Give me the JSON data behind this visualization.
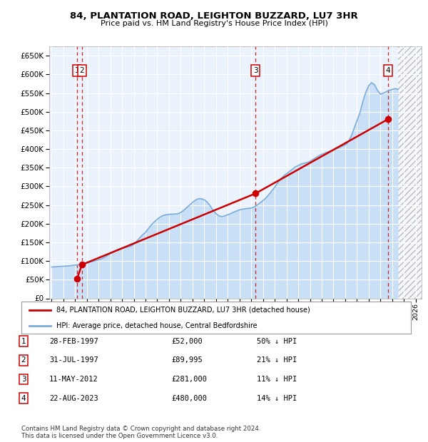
{
  "title1": "84, PLANTATION ROAD, LEIGHTON BUZZARD, LU7 3HR",
  "title2": "Price paid vs. HM Land Registry's House Price Index (HPI)",
  "legend_line1": "84, PLANTATION ROAD, LEIGHTON BUZZARD, LU7 3HR (detached house)",
  "legend_line2": "HPI: Average price, detached house, Central Bedfordshire",
  "footer1": "Contains HM Land Registry data © Crown copyright and database right 2024.",
  "footer2": "This data is licensed under the Open Government Licence v3.0.",
  "sale_color": "#cc0000",
  "hpi_color": "#7aacdc",
  "hpi_fill_color": "#c8dff5",
  "background_color": "#ffffff",
  "plot_bg_color": "#eaf2fb",
  "ylim": [
    0,
    675000
  ],
  "xlim_start": 1994.8,
  "xlim_end": 2026.5,
  "yticks": [
    0,
    50000,
    100000,
    150000,
    200000,
    250000,
    300000,
    350000,
    400000,
    450000,
    500000,
    550000,
    600000,
    650000
  ],
  "xticks": [
    1995,
    1996,
    1997,
    1998,
    1999,
    2000,
    2001,
    2002,
    2003,
    2004,
    2005,
    2006,
    2007,
    2008,
    2009,
    2010,
    2011,
    2012,
    2013,
    2014,
    2015,
    2016,
    2017,
    2018,
    2019,
    2020,
    2021,
    2022,
    2023,
    2024,
    2025,
    2026
  ],
  "sales": [
    {
      "year": 1997.16,
      "price": 52000,
      "label": "1"
    },
    {
      "year": 1997.58,
      "price": 89995,
      "label": "2"
    },
    {
      "year": 2012.36,
      "price": 281000,
      "label": "3"
    },
    {
      "year": 2023.64,
      "price": 480000,
      "label": "4"
    }
  ],
  "table_rows": [
    {
      "num": "1",
      "date": "28-FEB-1997",
      "price": "£52,000",
      "hpi": "50% ↓ HPI"
    },
    {
      "num": "2",
      "date": "31-JUL-1997",
      "price": "£89,995",
      "hpi": "21% ↓ HPI"
    },
    {
      "num": "3",
      "date": "11-MAY-2012",
      "price": "£281,000",
      "hpi": "11% ↓ HPI"
    },
    {
      "num": "4",
      "date": "22-AUG-2023",
      "price": "£480,000",
      "hpi": "14% ↓ HPI"
    }
  ],
  "hpi_data_x": [
    1995.0,
    1995.25,
    1995.5,
    1995.75,
    1996.0,
    1996.25,
    1996.5,
    1996.75,
    1997.0,
    1997.25,
    1997.5,
    1997.75,
    1998.0,
    1998.25,
    1998.5,
    1998.75,
    1999.0,
    1999.25,
    1999.5,
    1999.75,
    2000.0,
    2000.25,
    2000.5,
    2000.75,
    2001.0,
    2001.25,
    2001.5,
    2001.75,
    2002.0,
    2002.25,
    2002.5,
    2002.75,
    2003.0,
    2003.25,
    2003.5,
    2003.75,
    2004.0,
    2004.25,
    2004.5,
    2004.75,
    2005.0,
    2005.25,
    2005.5,
    2005.75,
    2006.0,
    2006.25,
    2006.5,
    2006.75,
    2007.0,
    2007.25,
    2007.5,
    2007.75,
    2008.0,
    2008.25,
    2008.5,
    2008.75,
    2009.0,
    2009.25,
    2009.5,
    2009.75,
    2010.0,
    2010.25,
    2010.5,
    2010.75,
    2011.0,
    2011.25,
    2011.5,
    2011.75,
    2012.0,
    2012.25,
    2012.5,
    2012.75,
    2013.0,
    2013.25,
    2013.5,
    2013.75,
    2014.0,
    2014.25,
    2014.5,
    2014.75,
    2015.0,
    2015.25,
    2015.5,
    2015.75,
    2016.0,
    2016.25,
    2016.5,
    2016.75,
    2017.0,
    2017.25,
    2017.5,
    2017.75,
    2018.0,
    2018.25,
    2018.5,
    2018.75,
    2019.0,
    2019.25,
    2019.5,
    2019.75,
    2020.0,
    2020.25,
    2020.5,
    2020.75,
    2021.0,
    2021.25,
    2021.5,
    2021.75,
    2022.0,
    2022.25,
    2022.5,
    2022.75,
    2023.0,
    2023.25,
    2023.5,
    2023.75,
    2024.0,
    2024.25,
    2024.5
  ],
  "hpi_data_y": [
    84000,
    84500,
    85000,
    85500,
    86000,
    86500,
    87000,
    88000,
    89000,
    90000,
    91500,
    93000,
    95000,
    97000,
    99000,
    101000,
    103000,
    106000,
    110000,
    115000,
    120000,
    125000,
    129000,
    132000,
    134000,
    136000,
    138000,
    140000,
    145000,
    153000,
    162000,
    170000,
    177000,
    187000,
    197000,
    205000,
    212000,
    218000,
    222000,
    224000,
    225000,
    225500,
    226000,
    226500,
    230000,
    236000,
    243000,
    250000,
    257000,
    263000,
    267000,
    267000,
    264000,
    258000,
    248000,
    236000,
    227000,
    221000,
    219000,
    221000,
    224000,
    227000,
    231000,
    234000,
    237000,
    239000,
    240000,
    241000,
    242000,
    245000,
    250000,
    256000,
    262000,
    269000,
    278000,
    288000,
    298000,
    310000,
    320000,
    328000,
    334000,
    340000,
    346000,
    352000,
    356000,
    360000,
    362000,
    364000,
    367000,
    372000,
    377000,
    382000,
    386000,
    389000,
    392000,
    395000,
    398000,
    401000,
    404000,
    408000,
    411000,
    418000,
    434000,
    455000,
    476000,
    497000,
    527000,
    552000,
    570000,
    578000,
    572000,
    557000,
    547000,
    550000,
    554000,
    557000,
    560000,
    562000,
    560000
  ],
  "hatch_start": 2024.5
}
